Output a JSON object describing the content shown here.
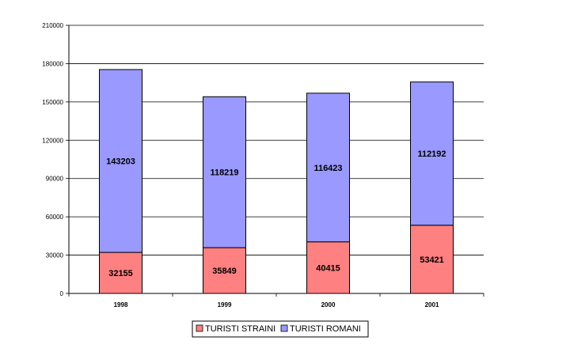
{
  "chart_data": {
    "type": "bar",
    "stacked": true,
    "categories": [
      "1998",
      "1999",
      "2000",
      "2001"
    ],
    "series": [
      {
        "name": "TURISTI STRAINI",
        "values": [
          32155,
          35849,
          40415,
          53421
        ],
        "color": "#ff8080"
      },
      {
        "name": "TURISTI ROMANI",
        "values": [
          143203,
          118219,
          116423,
          112192
        ],
        "color": "#9999ff"
      }
    ],
    "yticks": [
      "0",
      "30000",
      "60000",
      "90000",
      "120000",
      "150000",
      "180000",
      "210000"
    ],
    "ylim": [
      0,
      210000
    ],
    "grid": true,
    "legend_position": "bottom"
  }
}
